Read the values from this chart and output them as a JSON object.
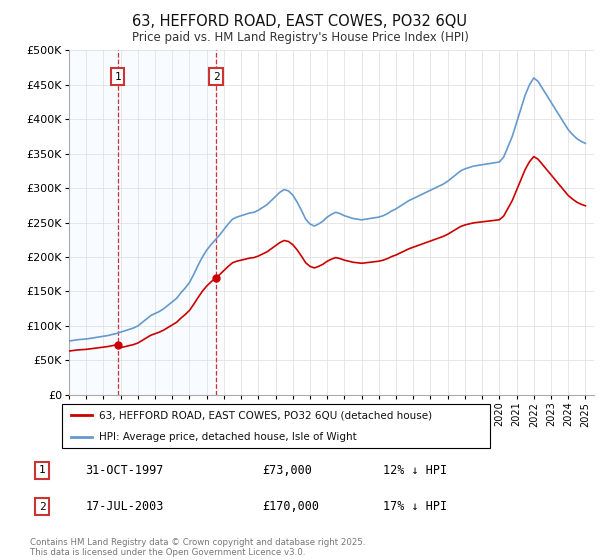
{
  "title": "63, HEFFORD ROAD, EAST COWES, PO32 6QU",
  "subtitle": "Price paid vs. HM Land Registry's House Price Index (HPI)",
  "footer": "Contains HM Land Registry data © Crown copyright and database right 2025.\nThis data is licensed under the Open Government Licence v3.0.",
  "legend_line1": "63, HEFFORD ROAD, EAST COWES, PO32 6QU (detached house)",
  "legend_line2": "HPI: Average price, detached house, Isle of Wight",
  "sale1_date": "31-OCT-1997",
  "sale1_price": "£73,000",
  "sale1_hpi": "12% ↓ HPI",
  "sale1_year": 1997.83,
  "sale1_value": 73000,
  "sale2_date": "17-JUL-2003",
  "sale2_price": "£170,000",
  "sale2_hpi": "17% ↓ HPI",
  "sale2_year": 2003.54,
  "sale2_value": 170000,
  "ylim": [
    0,
    500000
  ],
  "yticks": [
    0,
    50000,
    100000,
    150000,
    200000,
    250000,
    300000,
    350000,
    400000,
    450000,
    500000
  ],
  "background_color": "#ffffff",
  "plot_bg_color": "#ffffff",
  "grid_color": "#dddddd",
  "red_color": "#cc0000",
  "blue_color": "#6699cc",
  "shade_color": "#ddeeff",
  "marker_box_color": "#cc3333",
  "years_hpi": [
    1995.0,
    1995.25,
    1995.5,
    1995.75,
    1996.0,
    1996.25,
    1996.5,
    1996.75,
    1997.0,
    1997.25,
    1997.5,
    1997.75,
    1998.0,
    1998.25,
    1998.5,
    1998.75,
    1999.0,
    1999.25,
    1999.5,
    1999.75,
    2000.0,
    2000.25,
    2000.5,
    2000.75,
    2001.0,
    2001.25,
    2001.5,
    2001.75,
    2002.0,
    2002.25,
    2002.5,
    2002.75,
    2003.0,
    2003.25,
    2003.5,
    2003.75,
    2004.0,
    2004.25,
    2004.5,
    2004.75,
    2005.0,
    2005.25,
    2005.5,
    2005.75,
    2006.0,
    2006.25,
    2006.5,
    2006.75,
    2007.0,
    2007.25,
    2007.5,
    2007.75,
    2008.0,
    2008.25,
    2008.5,
    2008.75,
    2009.0,
    2009.25,
    2009.5,
    2009.75,
    2010.0,
    2010.25,
    2010.5,
    2010.75,
    2011.0,
    2011.25,
    2011.5,
    2011.75,
    2012.0,
    2012.25,
    2012.5,
    2012.75,
    2013.0,
    2013.25,
    2013.5,
    2013.75,
    2014.0,
    2014.25,
    2014.5,
    2014.75,
    2015.0,
    2015.25,
    2015.5,
    2015.75,
    2016.0,
    2016.25,
    2016.5,
    2016.75,
    2017.0,
    2017.25,
    2017.5,
    2017.75,
    2018.0,
    2018.25,
    2018.5,
    2018.75,
    2019.0,
    2019.25,
    2019.5,
    2019.75,
    2020.0,
    2020.25,
    2020.5,
    2020.75,
    2021.0,
    2021.25,
    2021.5,
    2021.75,
    2022.0,
    2022.25,
    2022.5,
    2022.75,
    2023.0,
    2023.25,
    2023.5,
    2023.75,
    2024.0,
    2024.25,
    2024.5,
    2024.75,
    2025.0
  ],
  "hpi_values": [
    78000,
    79000,
    80000,
    80500,
    81000,
    82000,
    83000,
    84000,
    85000,
    86000,
    87500,
    89000,
    91000,
    93000,
    95000,
    97000,
    100000,
    105000,
    110000,
    115000,
    118000,
    121000,
    125000,
    130000,
    135000,
    140000,
    148000,
    155000,
    163000,
    175000,
    188000,
    200000,
    210000,
    218000,
    225000,
    232000,
    240000,
    248000,
    255000,
    258000,
    260000,
    262000,
    264000,
    265000,
    268000,
    272000,
    276000,
    282000,
    288000,
    294000,
    298000,
    296000,
    290000,
    280000,
    268000,
    255000,
    248000,
    245000,
    248000,
    252000,
    258000,
    262000,
    265000,
    263000,
    260000,
    258000,
    256000,
    255000,
    254000,
    255000,
    256000,
    257000,
    258000,
    260000,
    263000,
    267000,
    270000,
    274000,
    278000,
    282000,
    285000,
    288000,
    291000,
    294000,
    297000,
    300000,
    303000,
    306000,
    310000,
    315000,
    320000,
    325000,
    328000,
    330000,
    332000,
    333000,
    334000,
    335000,
    336000,
    337000,
    338000,
    345000,
    360000,
    375000,
    395000,
    415000,
    435000,
    450000,
    460000,
    455000,
    445000,
    435000,
    425000,
    415000,
    405000,
    395000,
    385000,
    378000,
    372000,
    368000,
    365000
  ]
}
